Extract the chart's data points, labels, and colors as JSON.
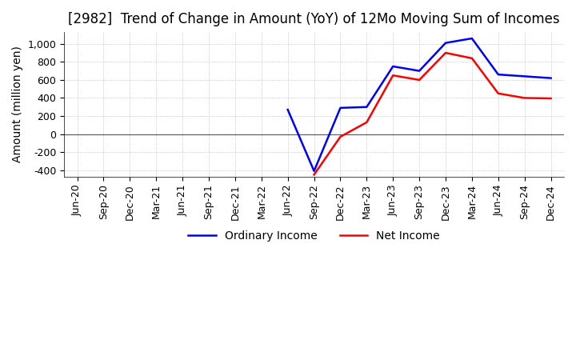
{
  "title": "[2982]  Trend of Change in Amount (YoY) of 12Mo Moving Sum of Incomes",
  "ylabel": "Amount (million yen)",
  "ylim": [
    -470,
    1130
  ],
  "yticks": [
    -400,
    -200,
    0,
    200,
    400,
    600,
    800,
    1000
  ],
  "background_color": "#ffffff",
  "grid_color": "#aaaaaa",
  "ordinary_income_color": "#0000ff",
  "net_income_color": "#ff0000",
  "x_labels": [
    "Jun-20",
    "Sep-20",
    "Dec-20",
    "Mar-21",
    "Jun-21",
    "Sep-21",
    "Dec-21",
    "Mar-22",
    "Jun-22",
    "Sep-22",
    "Dec-22",
    "Mar-23",
    "Jun-23",
    "Sep-23",
    "Dec-23",
    "Mar-24",
    "Jun-24",
    "Sep-24",
    "Dec-24"
  ],
  "ordinary_income": [
    null,
    null,
    null,
    null,
    null,
    null,
    null,
    null,
    270,
    -410,
    290,
    300,
    750,
    700,
    1010,
    1060,
    660,
    640,
    620
  ],
  "net_income": [
    null,
    null,
    null,
    null,
    null,
    null,
    null,
    null,
    null,
    -450,
    -30,
    130,
    650,
    600,
    900,
    840,
    450,
    400,
    395
  ],
  "title_fontsize": 12,
  "tick_fontsize": 9,
  "label_fontsize": 10
}
